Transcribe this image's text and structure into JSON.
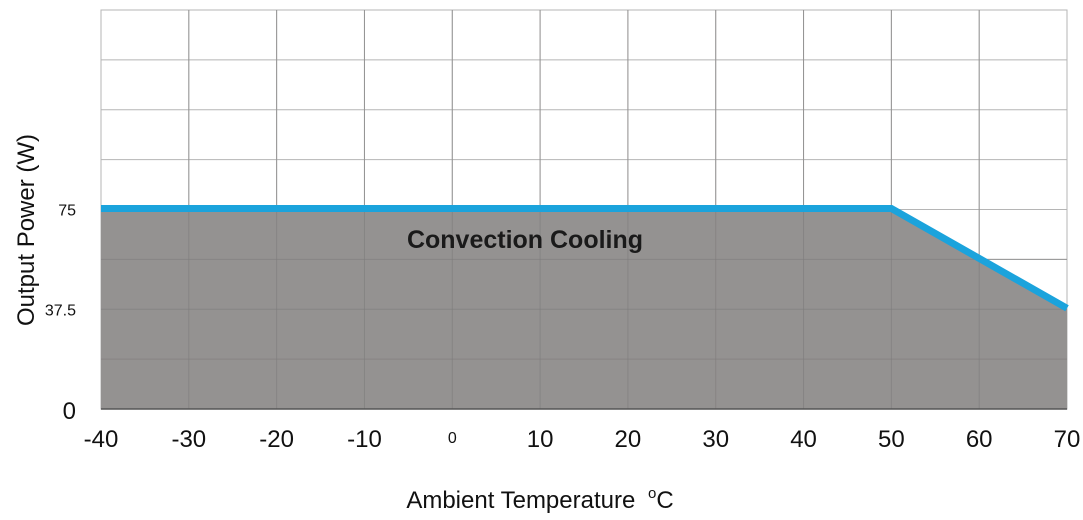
{
  "chart_data": {
    "type": "area",
    "title": "",
    "xlabel": "Ambient Temperature",
    "xlabel_unit": "°C",
    "ylabel": "Output Power (W)",
    "annotation": "Convection Cooling",
    "x_ticks": [
      "-40",
      "-30",
      "-20",
      "-10",
      "0",
      "10",
      "20",
      "30",
      "40",
      "50",
      "60",
      "70"
    ],
    "y_ticks": [
      "0",
      "37.5",
      "75"
    ],
    "xlim": [
      -40,
      70
    ],
    "ylim": [
      0,
      150
    ],
    "grid": true,
    "series": [
      {
        "x": [
          -40,
          50,
          70
        ],
        "y": [
          75,
          75,
          37.5
        ]
      }
    ],
    "colors": {
      "line": "#1ba3dc",
      "fill": "#949291",
      "grid": "#b5b5b5"
    }
  }
}
